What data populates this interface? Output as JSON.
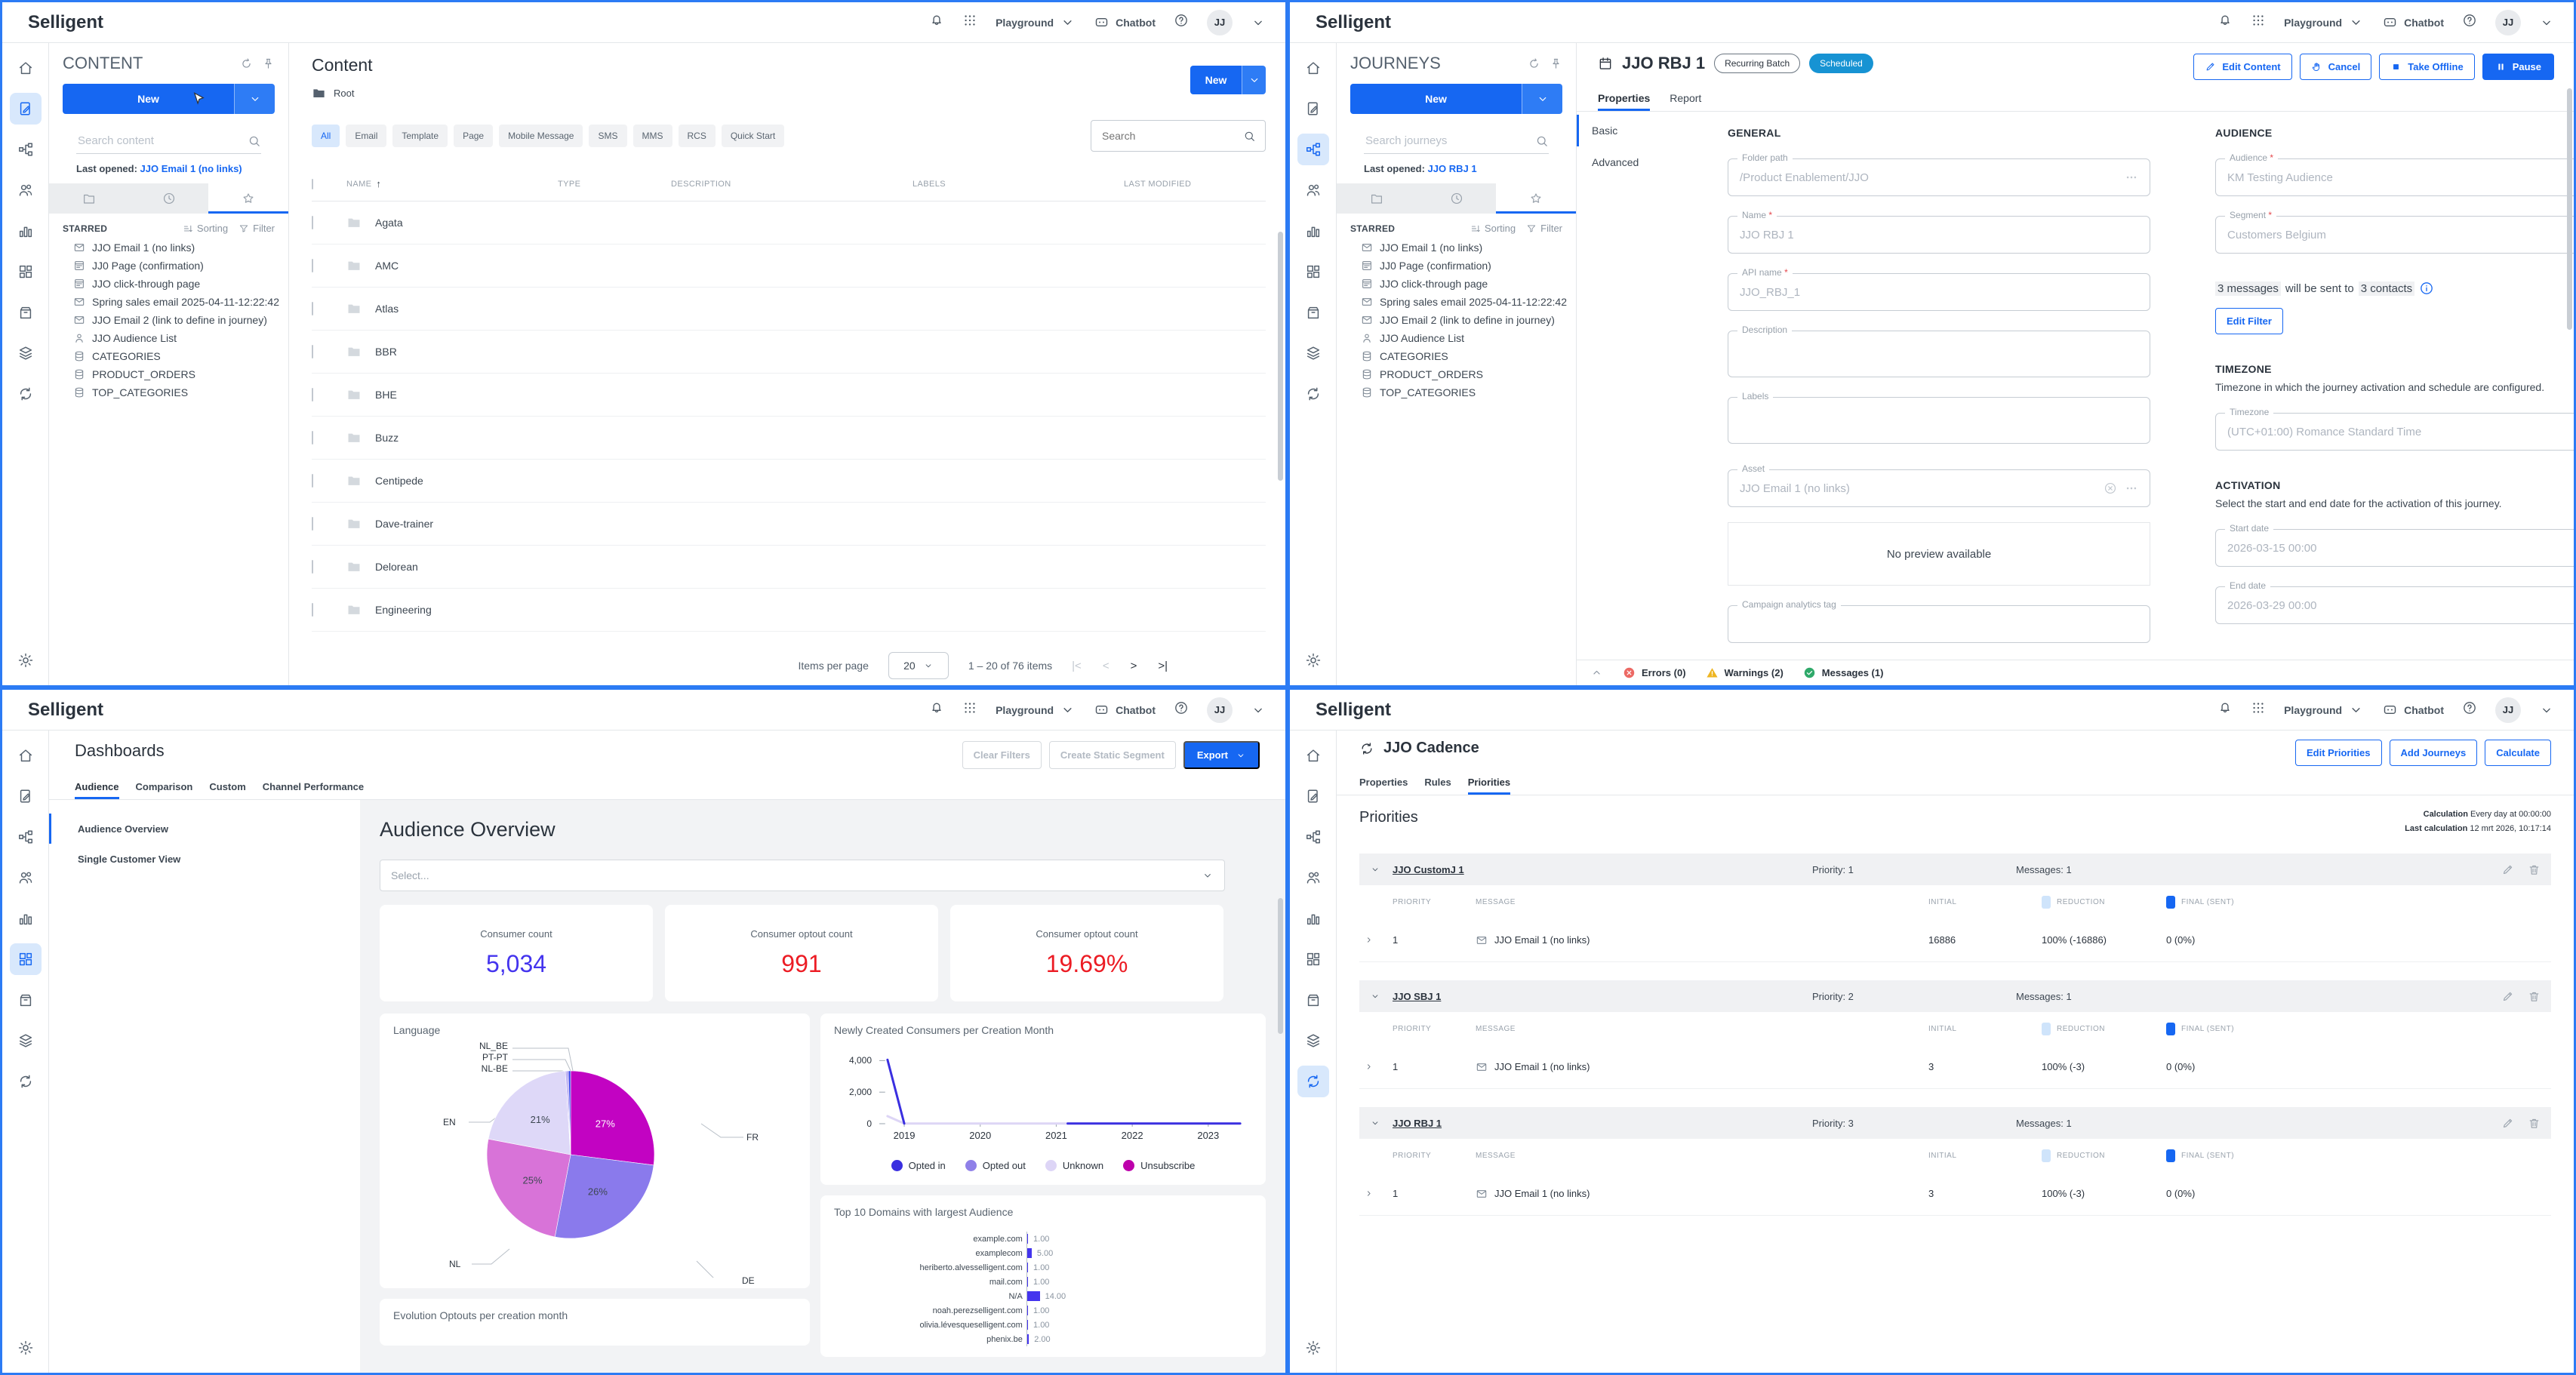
{
  "header": {
    "brand": "Selligent",
    "env": "Playground",
    "chatbot": "Chatbot",
    "avatar": "JJ"
  },
  "colors": {
    "primary": "#1667f2",
    "scheduled_badge": "#1793d3",
    "error": "#ec6964",
    "warning": "#eeb522",
    "success": "#2fa96a",
    "reduction_swatch": "#cfe4fb",
    "final_swatch": "#1667f2",
    "consumer_count": "#4434ee",
    "optout": "#ec1c24"
  },
  "starred": {
    "heading": "STARRED",
    "sorting": "Sorting",
    "filter": "Filter",
    "items": [
      {
        "icon": "email",
        "label": "JJO Email 1 (no links)"
      },
      {
        "icon": "page",
        "label": "JJ0 Page (confirmation)"
      },
      {
        "icon": "page",
        "label": "JJO click-through page"
      },
      {
        "icon": "email",
        "label": "Spring sales email 2025-04-11-12:22:42"
      },
      {
        "icon": "email",
        "label": "JJO Email 2 (link to define in journey)"
      },
      {
        "icon": "person",
        "label": "JJO Audience List"
      },
      {
        "icon": "database",
        "label": "CATEGORIES"
      },
      {
        "icon": "database",
        "label": "PRODUCT_ORDERS"
      },
      {
        "icon": "database",
        "label": "TOP_CATEGORIES"
      }
    ]
  },
  "content": {
    "panel": {
      "title": "CONTENT",
      "new": "New",
      "search_placeholder": "Search content",
      "last_opened": "Last opened:",
      "last_opened_link": "JJO Email 1 (no links)"
    },
    "title": "Content",
    "breadcrumb": "Root",
    "new": "New",
    "chips": [
      "All",
      "Email",
      "Template",
      "Page",
      "Mobile Message",
      "SMS",
      "MMS",
      "RCS",
      "Quick Start"
    ],
    "search_placeholder": "Search",
    "columns": {
      "name": "NAME",
      "type": "TYPE",
      "description": "DESCRIPTION",
      "labels": "LABELS",
      "modified": "LAST MODIFIED"
    },
    "rows": [
      {
        "name": "Agata"
      },
      {
        "name": "AMC"
      },
      {
        "name": "Atlas"
      },
      {
        "name": "BBR"
      },
      {
        "name": "BHE"
      },
      {
        "name": "Buzz"
      },
      {
        "name": "Centipede"
      },
      {
        "name": "Dave-trainer"
      },
      {
        "name": "Delorean"
      },
      {
        "name": "Engineering"
      }
    ],
    "pagination": {
      "label": "Items per page",
      "size": "20",
      "range": "1 – 20 of 76 items",
      "first": "|<",
      "prev": "<",
      "next": ">",
      "last": ">|"
    }
  },
  "journeys": {
    "panel": {
      "title": "JOURNEYS",
      "new": "New",
      "search_placeholder": "Search journeys",
      "last_opened": "Last opened:",
      "last_opened_link": "JJO RBJ 1"
    },
    "detail": {
      "title": "JJO RBJ 1",
      "badge_type": "Recurring Batch",
      "badge_status": "Scheduled",
      "actions": {
        "edit": "Edit Content",
        "cancel": "Cancel",
        "offline": "Take Offline",
        "pause": "Pause"
      },
      "tabs": {
        "properties": "Properties",
        "report": "Report"
      },
      "subnav": {
        "basic": "Basic",
        "advanced": "Advanced"
      },
      "general": {
        "heading": "GENERAL",
        "folder_label": "Folder path",
        "folder_value": "/Product Enablement/JJO",
        "name_label": "Name",
        "name_value": "JJO RBJ 1",
        "api_label": "API name",
        "api_value": "JJO_RBJ_1",
        "description_label": "Description",
        "labels_label": "Labels",
        "asset_label": "Asset",
        "asset_value": "JJO Email 1 (no links)",
        "no_preview": "No preview available",
        "campaign_label": "Campaign analytics tag"
      },
      "audience": {
        "heading": "AUDIENCE",
        "audience_label": "Audience",
        "audience_value": "KM Testing Audience",
        "segment_label": "Segment",
        "segment_value": "Customers Belgium",
        "summary_messages": "3 messages",
        "summary_mid": "will be sent to",
        "summary_contacts": "3 contacts",
        "edit_filter": "Edit Filter"
      },
      "timezone": {
        "heading": "TIMEZONE",
        "description": "Timezone in which the journey activation and schedule are configured.",
        "label": "Timezone",
        "value": "(UTC+01:00) Romance Standard Time"
      },
      "activation": {
        "heading": "ACTIVATION",
        "description": "Select the start and end date for the activation of this journey.",
        "start_label": "Start date",
        "start_value": "2026-03-15 00:00",
        "end_label": "End date",
        "end_value": "2026-03-29 00:00"
      },
      "footer": {
        "errors": "Errors (0)",
        "warnings": "Warnings (2)",
        "messages": "Messages (1)"
      }
    }
  },
  "dashboards": {
    "title": "Dashboards",
    "tabs": [
      "Audience",
      "Comparison",
      "Custom",
      "Channel Performance"
    ],
    "actions": {
      "clear": "Clear Filters",
      "segment": "Create Static Segment",
      "export": "Export"
    },
    "nav": [
      "Audience Overview",
      "Single Customer View"
    ],
    "overview_title": "Audience Overview",
    "select_placeholder": "Select...",
    "stats": [
      {
        "label": "Consumer count",
        "value": "5,034",
        "color": "#4434ee"
      },
      {
        "label": "Consumer optout count",
        "value": "991",
        "color": "#ec1c24"
      },
      {
        "label": "Consumer optout count",
        "value": "19.69%",
        "color": "#ec1c24"
      }
    ],
    "evolution_title": "Evolution Optouts per creation month",
    "chart_data": [
      {
        "type": "pie",
        "title": "Language",
        "slices": [
          {
            "label": "FR",
            "pct": 27,
            "pct_label": "27%",
            "color": "#c203c2"
          },
          {
            "label": "DE",
            "pct": 26,
            "pct_label": "26%",
            "color": "#8a7aec"
          },
          {
            "label": "NL",
            "pct": 25,
            "pct_label": "25%",
            "color": "#d873d8"
          },
          {
            "label": "EN",
            "pct": 21,
            "pct_label": "21%",
            "color": "#ded8f8"
          },
          {
            "label": "NL-BE",
            "pct": 0.3,
            "pct_label": "",
            "color": "#b7a9f1"
          },
          {
            "label": "PT-PT",
            "pct": 0.3,
            "pct_label": "",
            "color": "#9a8af0"
          },
          {
            "label": "NL_BE",
            "pct": 0.4,
            "pct_label": "",
            "color": "#3340e8"
          }
        ]
      },
      {
        "type": "line",
        "title": "Newly Created Consumers per Creation Month",
        "xlim": [
          2018.72,
          2023.45
        ],
        "ylim": [
          0,
          4400
        ],
        "yticks": [
          {
            "v": 4000,
            "label": "4,000"
          },
          {
            "v": 2000,
            "label": "2,000"
          },
          {
            "v": 0,
            "label": "0"
          }
        ],
        "xticks": [
          {
            "v": 2019,
            "label": "2019"
          },
          {
            "v": 2020,
            "label": "2020"
          },
          {
            "v": 2021,
            "label": "2021"
          },
          {
            "v": 2022,
            "label": "2022"
          },
          {
            "v": 2023,
            "label": "2023"
          }
        ],
        "legend": [
          {
            "label": "Opted in",
            "color": "#3a2fe0"
          },
          {
            "label": "Opted out",
            "color": "#8f80e8"
          },
          {
            "label": "Unknown",
            "color": "#ddd5f6"
          },
          {
            "label": "Unsubscribe",
            "color": "#bd00ab"
          }
        ],
        "series": [
          {
            "name": "Unknown",
            "color": "#ddd5f6",
            "points": [
              [
                2018.78,
                480
              ],
              [
                2019,
                10
              ],
              [
                2021.15,
                10
              ]
            ]
          },
          {
            "name": "Opted in",
            "color": "#3a2fe0",
            "points": [
              [
                2018.78,
                4050
              ],
              [
                2019,
                10
              ]
            ]
          },
          {
            "name": "Opted in",
            "color": "#3a2fe0",
            "points": [
              [
                2021.15,
                10
              ],
              [
                2023.42,
                10
              ]
            ]
          }
        ]
      },
      {
        "type": "bar",
        "title": "Top 10 Domains with largest Audience",
        "orientation": "horizontal",
        "rows": [
          {
            "label": "example.com",
            "value": 1,
            "value_label": "1.00"
          },
          {
            "label": "examplecom",
            "value": 5,
            "value_label": "5.00"
          },
          {
            "label": "heriberto.alvesselligent.com",
            "value": 1,
            "value_label": "1.00"
          },
          {
            "label": "mail.com",
            "value": 1,
            "value_label": "1.00"
          },
          {
            "label": "N/A",
            "value": 14,
            "value_label": "14.00"
          },
          {
            "label": "noah.perezselligent.com",
            "value": 1,
            "value_label": "1.00"
          },
          {
            "label": "olivia.lévesqueselligent.com",
            "value": 1,
            "value_label": "1.00"
          },
          {
            "label": "phenix.be",
            "value": 2,
            "value_label": "2.00"
          }
        ]
      }
    ]
  },
  "cadence": {
    "title": "JJO Cadence",
    "tabs": {
      "properties": "Properties",
      "rules": "Rules",
      "priorities": "Priorities"
    },
    "actions": {
      "edit": "Edit Priorities",
      "add": "Add Journeys",
      "calculate": "Calculate"
    },
    "heading": "Priorities",
    "calc_label": "Calculation",
    "calc_value": "Every day at 00:00:00",
    "last_label": "Last calculation",
    "last_value": "12 mrt 2026, 10:17:14",
    "columns": {
      "priority": "PRIORITY",
      "message": "MESSAGE",
      "initial": "INITIAL",
      "reduction": "REDUCTION",
      "final": "FINAL (SENT)"
    },
    "groups": [
      {
        "name": "JJO CustomJ 1",
        "priority": "Priority: 1",
        "messages": "Messages: 1",
        "rows": [
          {
            "priority": "1",
            "message": "JJO Email 1 (no links)",
            "initial": "16886",
            "reduction": "100% (-16886)",
            "final": "0 (0%)"
          }
        ]
      },
      {
        "name": "JJO SBJ 1",
        "priority": "Priority: 2",
        "messages": "Messages: 1",
        "rows": [
          {
            "priority": "1",
            "message": "JJO Email 1 (no links)",
            "initial": "3",
            "reduction": "100% (-3)",
            "final": "0 (0%)"
          }
        ]
      },
      {
        "name": "JJO RBJ 1",
        "priority": "Priority: 3",
        "messages": "Messages: 1",
        "rows": [
          {
            "priority": "1",
            "message": "JJO Email 1 (no links)",
            "initial": "3",
            "reduction": "100% (-3)",
            "final": "0 (0%)"
          }
        ]
      }
    ]
  }
}
